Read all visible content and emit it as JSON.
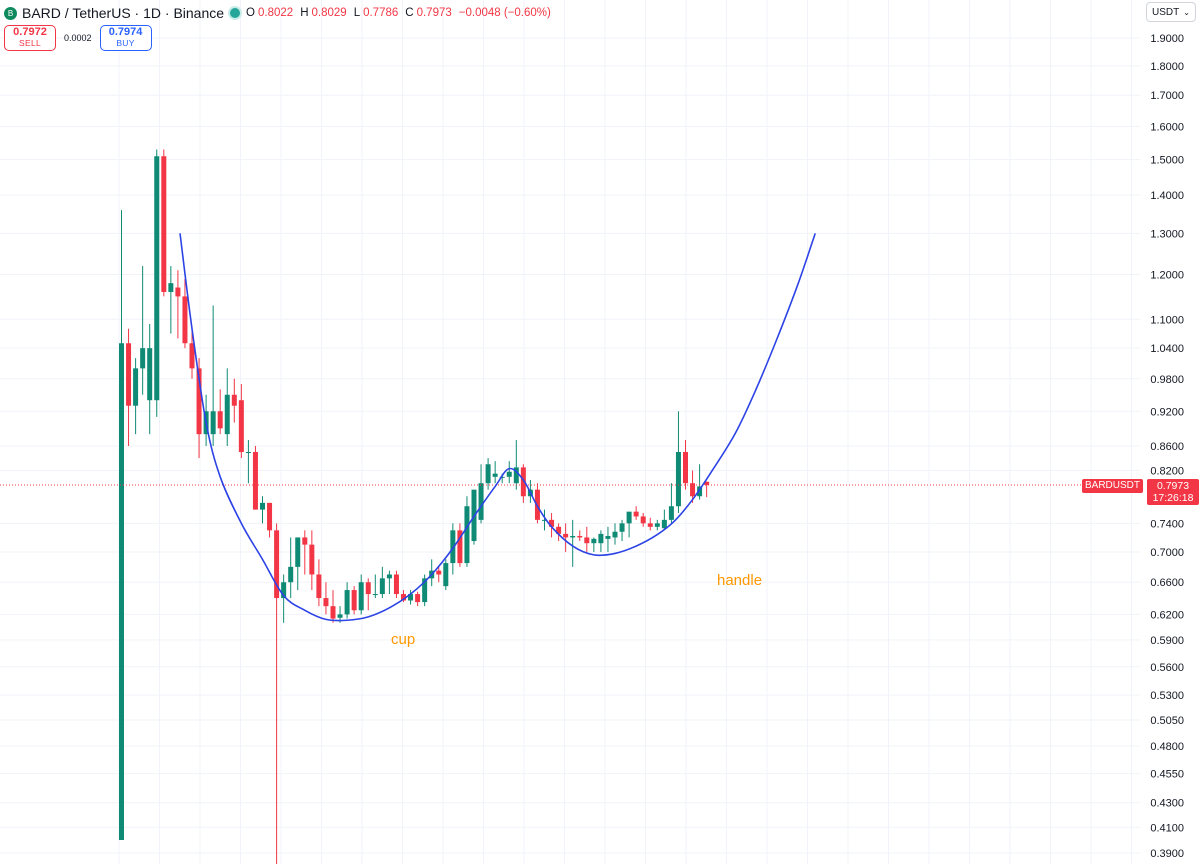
{
  "header": {
    "symbol_logo": "B",
    "title": "BARD / TetherUS · 1D · Binance",
    "ohlc": [
      {
        "label": "O",
        "value": "0.8022"
      },
      {
        "label": "H",
        "value": "0.8029"
      },
      {
        "label": "L",
        "value": "0.7786"
      },
      {
        "label": "C",
        "value": "0.7973"
      }
    ],
    "change": "−0.0048 (−0.60%)"
  },
  "trade": {
    "sell_price": "0.7972",
    "sell_label": "SELL",
    "spread": "0.0002",
    "buy_price": "0.7974",
    "buy_label": "BUY"
  },
  "currency_selector": {
    "value": "USDT",
    "icon": "chevron-down-icon"
  },
  "price_tag": {
    "symbol": "BARDUSDT",
    "price": "0.7973",
    "countdown": "17:26:18"
  },
  "annotations": {
    "cup": "cup",
    "handle": "handle"
  },
  "colors": {
    "up": "#0f8a74",
    "down": "#f23645",
    "curve": "#2c43e6",
    "annotation": "#ff9800"
  },
  "chart_data": {
    "type": "candlestick",
    "scale": "log",
    "ylim": [
      0.385,
      1.95
    ],
    "yticks": [
      "1.9000",
      "1.8000",
      "1.7000",
      "1.6000",
      "1.5000",
      "1.4000",
      "1.3000",
      "1.2000",
      "1.1000",
      "1.0400",
      "0.9800",
      "0.9200",
      "0.8600",
      "0.8200",
      "0.7400",
      "0.7000",
      "0.6600",
      "0.6200",
      "0.5900",
      "0.5600",
      "0.5300",
      "0.5050",
      "0.4800",
      "0.4550",
      "0.4300",
      "0.4100",
      "0.3900"
    ],
    "last_price": 0.7973,
    "candles": [
      {
        "o": 0.4,
        "h": 1.36,
        "l": 0.4,
        "c": 1.05
      },
      {
        "o": 1.05,
        "h": 1.08,
        "l": 0.86,
        "c": 0.93
      },
      {
        "o": 0.93,
        "h": 1.02,
        "l": 0.88,
        "c": 1.0
      },
      {
        "o": 1.0,
        "h": 1.22,
        "l": 0.95,
        "c": 1.04
      },
      {
        "o": 0.94,
        "h": 1.09,
        "l": 0.88,
        "c": 1.04
      },
      {
        "o": 0.94,
        "h": 1.53,
        "l": 0.91,
        "c": 1.51
      },
      {
        "o": 1.51,
        "h": 1.53,
        "l": 1.15,
        "c": 1.16
      },
      {
        "o": 1.16,
        "h": 1.22,
        "l": 1.07,
        "c": 1.18
      },
      {
        "o": 1.17,
        "h": 1.21,
        "l": 1.06,
        "c": 1.15
      },
      {
        "o": 1.15,
        "h": 1.19,
        "l": 1.04,
        "c": 1.05
      },
      {
        "o": 1.05,
        "h": 1.08,
        "l": 0.98,
        "c": 1.0
      },
      {
        "o": 1.0,
        "h": 1.02,
        "l": 0.84,
        "c": 0.88
      },
      {
        "o": 0.88,
        "h": 0.95,
        "l": 0.86,
        "c": 0.92
      },
      {
        "o": 0.88,
        "h": 1.13,
        "l": 0.86,
        "c": 0.92
      },
      {
        "o": 0.92,
        "h": 0.96,
        "l": 0.88,
        "c": 0.89
      },
      {
        "o": 0.88,
        "h": 1.0,
        "l": 0.86,
        "c": 0.95
      },
      {
        "o": 0.95,
        "h": 0.98,
        "l": 0.9,
        "c": 0.93
      },
      {
        "o": 0.94,
        "h": 0.97,
        "l": 0.84,
        "c": 0.85
      },
      {
        "o": 0.85,
        "h": 0.87,
        "l": 0.8,
        "c": 0.85
      },
      {
        "o": 0.85,
        "h": 0.86,
        "l": 0.76,
        "c": 0.76
      },
      {
        "o": 0.76,
        "h": 0.78,
        "l": 0.74,
        "c": 0.77
      },
      {
        "o": 0.77,
        "h": 0.77,
        "l": 0.72,
        "c": 0.73
      },
      {
        "o": 0.73,
        "h": 0.74,
        "l": 0.38,
        "c": 0.64
      },
      {
        "o": 0.64,
        "h": 0.67,
        "l": 0.61,
        "c": 0.66
      },
      {
        "o": 0.66,
        "h": 0.72,
        "l": 0.64,
        "c": 0.68
      },
      {
        "o": 0.68,
        "h": 0.72,
        "l": 0.65,
        "c": 0.72
      },
      {
        "o": 0.72,
        "h": 0.73,
        "l": 0.67,
        "c": 0.71
      },
      {
        "o": 0.71,
        "h": 0.73,
        "l": 0.65,
        "c": 0.67
      },
      {
        "o": 0.67,
        "h": 0.69,
        "l": 0.63,
        "c": 0.64
      },
      {
        "o": 0.64,
        "h": 0.66,
        "l": 0.62,
        "c": 0.63
      },
      {
        "o": 0.63,
        "h": 0.65,
        "l": 0.61,
        "c": 0.615
      },
      {
        "o": 0.616,
        "h": 0.63,
        "l": 0.61,
        "c": 0.62
      },
      {
        "o": 0.62,
        "h": 0.66,
        "l": 0.615,
        "c": 0.65
      },
      {
        "o": 0.65,
        "h": 0.655,
        "l": 0.62,
        "c": 0.625
      },
      {
        "o": 0.625,
        "h": 0.67,
        "l": 0.62,
        "c": 0.66
      },
      {
        "o": 0.66,
        "h": 0.665,
        "l": 0.625,
        "c": 0.645
      },
      {
        "o": 0.645,
        "h": 0.67,
        "l": 0.64,
        "c": 0.645
      },
      {
        "o": 0.645,
        "h": 0.68,
        "l": 0.64,
        "c": 0.665
      },
      {
        "o": 0.665,
        "h": 0.675,
        "l": 0.645,
        "c": 0.67
      },
      {
        "o": 0.67,
        "h": 0.675,
        "l": 0.64,
        "c": 0.645
      },
      {
        "o": 0.645,
        "h": 0.65,
        "l": 0.635,
        "c": 0.637
      },
      {
        "o": 0.637,
        "h": 0.65,
        "l": 0.632,
        "c": 0.645
      },
      {
        "o": 0.645,
        "h": 0.648,
        "l": 0.63,
        "c": 0.635
      },
      {
        "o": 0.635,
        "h": 0.67,
        "l": 0.63,
        "c": 0.665
      },
      {
        "o": 0.665,
        "h": 0.69,
        "l": 0.655,
        "c": 0.675
      },
      {
        "o": 0.675,
        "h": 0.68,
        "l": 0.66,
        "c": 0.67
      },
      {
        "o": 0.655,
        "h": 0.69,
        "l": 0.65,
        "c": 0.685
      },
      {
        "o": 0.685,
        "h": 0.74,
        "l": 0.67,
        "c": 0.73
      },
      {
        "o": 0.73,
        "h": 0.74,
        "l": 0.68,
        "c": 0.685
      },
      {
        "o": 0.685,
        "h": 0.78,
        "l": 0.68,
        "c": 0.765
      },
      {
        "o": 0.715,
        "h": 0.79,
        "l": 0.71,
        "c": 0.79
      },
      {
        "o": 0.745,
        "h": 0.83,
        "l": 0.74,
        "c": 0.8
      },
      {
        "o": 0.8,
        "h": 0.84,
        "l": 0.79,
        "c": 0.83
      },
      {
        "o": 0.81,
        "h": 0.835,
        "l": 0.8,
        "c": 0.815
      },
      {
        "o": 0.81,
        "h": 0.815,
        "l": 0.8,
        "c": 0.81
      },
      {
        "o": 0.81,
        "h": 0.835,
        "l": 0.8,
        "c": 0.818
      },
      {
        "o": 0.8,
        "h": 0.87,
        "l": 0.79,
        "c": 0.825
      },
      {
        "o": 0.825,
        "h": 0.83,
        "l": 0.77,
        "c": 0.78
      },
      {
        "o": 0.78,
        "h": 0.805,
        "l": 0.77,
        "c": 0.79
      },
      {
        "o": 0.79,
        "h": 0.8,
        "l": 0.74,
        "c": 0.745
      },
      {
        "o": 0.745,
        "h": 0.76,
        "l": 0.73,
        "c": 0.745
      },
      {
        "o": 0.745,
        "h": 0.755,
        "l": 0.72,
        "c": 0.735
      },
      {
        "o": 0.735,
        "h": 0.74,
        "l": 0.715,
        "c": 0.725
      },
      {
        "o": 0.725,
        "h": 0.74,
        "l": 0.7,
        "c": 0.72
      },
      {
        "o": 0.72,
        "h": 0.745,
        "l": 0.68,
        "c": 0.722
      },
      {
        "o": 0.722,
        "h": 0.73,
        "l": 0.715,
        "c": 0.72
      },
      {
        "o": 0.72,
        "h": 0.735,
        "l": 0.7,
        "c": 0.712
      },
      {
        "o": 0.712,
        "h": 0.72,
        "l": 0.7,
        "c": 0.718
      },
      {
        "o": 0.712,
        "h": 0.73,
        "l": 0.7,
        "c": 0.725
      },
      {
        "o": 0.718,
        "h": 0.735,
        "l": 0.7,
        "c": 0.722
      },
      {
        "o": 0.72,
        "h": 0.74,
        "l": 0.71,
        "c": 0.728
      },
      {
        "o": 0.728,
        "h": 0.745,
        "l": 0.715,
        "c": 0.74
      },
      {
        "o": 0.74,
        "h": 0.75,
        "l": 0.72,
        "c": 0.757
      },
      {
        "o": 0.757,
        "h": 0.765,
        "l": 0.745,
        "c": 0.75
      },
      {
        "o": 0.75,
        "h": 0.755,
        "l": 0.735,
        "c": 0.74
      },
      {
        "o": 0.74,
        "h": 0.748,
        "l": 0.73,
        "c": 0.735
      },
      {
        "o": 0.735,
        "h": 0.745,
        "l": 0.73,
        "c": 0.74
      },
      {
        "o": 0.733,
        "h": 0.76,
        "l": 0.73,
        "c": 0.745
      },
      {
        "o": 0.745,
        "h": 0.8,
        "l": 0.74,
        "c": 0.765
      },
      {
        "o": 0.765,
        "h": 0.92,
        "l": 0.755,
        "c": 0.85
      },
      {
        "o": 0.85,
        "h": 0.87,
        "l": 0.79,
        "c": 0.8
      },
      {
        "o": 0.8,
        "h": 0.82,
        "l": 0.77,
        "c": 0.78
      },
      {
        "o": 0.78,
        "h": 0.83,
        "l": 0.775,
        "c": 0.795
      },
      {
        "o": 0.8022,
        "h": 0.8029,
        "l": 0.7786,
        "c": 0.7973
      }
    ],
    "curve": "cup-and-handle arc projection",
    "grid": true
  }
}
